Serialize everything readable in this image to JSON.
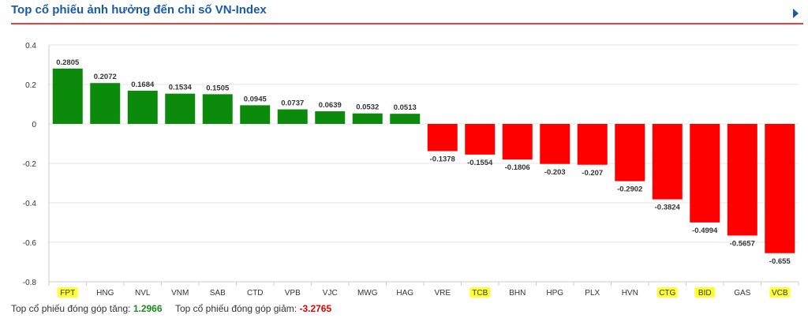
{
  "header": {
    "title": "Top cổ phiếu ảnh hưởng đến chỉ số VN-Index"
  },
  "chart_data": {
    "type": "bar",
    "categories": [
      "FPT",
      "HNG",
      "NVL",
      "VNM",
      "SAB",
      "CTD",
      "VPB",
      "VJC",
      "MWG",
      "HAG",
      "VRE",
      "TCB",
      "BHN",
      "HPG",
      "PLX",
      "HVN",
      "CTG",
      "BID",
      "GAS",
      "VCB"
    ],
    "values": [
      0.2805,
      0.2072,
      0.1684,
      0.1534,
      0.1505,
      0.0945,
      0.0737,
      0.0639,
      0.0532,
      0.0513,
      -0.1378,
      -0.1554,
      -0.1806,
      -0.203,
      -0.207,
      -0.2902,
      -0.3824,
      -0.4994,
      -0.5657,
      -0.655
    ],
    "value_labels": [
      "0.2805",
      "0.2072",
      "0.1684",
      "0.1534",
      "0.1505",
      "0.0945",
      "0.0737",
      "0.0639",
      "0.0532",
      "0.0513",
      "-0.1378",
      "-0.1554",
      "-0.1806",
      "-0.203",
      "-0.207",
      "-0.2902",
      "-0.3824",
      "-0.4994",
      "-0.5657",
      "-0.655"
    ],
    "yticks": [
      "0.4",
      "0.2",
      "0",
      "-0.2",
      "-0.4",
      "-0.6",
      "-0.8"
    ],
    "ytick_values": [
      0.4,
      0.2,
      0,
      -0.2,
      -0.4,
      -0.6,
      -0.8
    ],
    "ylim": [
      -0.8,
      0.4
    ],
    "grid": true,
    "highlighted_categories": [
      "FPT",
      "TCB",
      "CTG",
      "BID",
      "VCB"
    ],
    "colors": {
      "positive": "#0b8a0b",
      "negative": "#ff0000",
      "highlight": "#ffff33",
      "grid": "#e6e6e6",
      "axis": "#cccccc"
    }
  },
  "footer": {
    "up_label": "Top cổ phiếu đóng góp tăng:",
    "up_value": "1.2966",
    "down_label": "Top cổ phiếu đóng góp giảm:",
    "down_value": "-3.2765"
  }
}
